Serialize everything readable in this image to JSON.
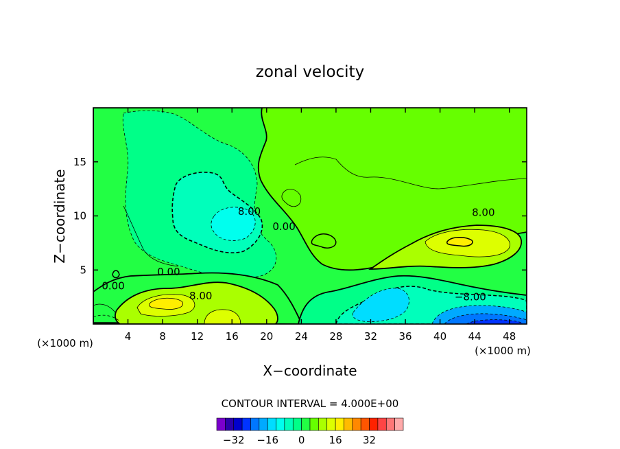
{
  "chart_data": {
    "type": "heatmap",
    "title": "zonal velocity",
    "xlabel": "X−coordinate",
    "ylabel": "Z−coordinate",
    "x_unit_label_left": "(×1000 m)",
    "x_unit_label_right": "(×1000 m)",
    "xlim": [
      0,
      50
    ],
    "ylim": [
      0,
      20
    ],
    "xticks": [
      4,
      8,
      12,
      16,
      20,
      24,
      28,
      32,
      36,
      40,
      44,
      48
    ],
    "yticks": [
      5,
      10,
      15
    ],
    "contour_interval_text": "CONTOUR INTERVAL = 4.000E+00",
    "contour_labels": [
      {
        "text": "0.00",
        "x": 2.3,
        "y": 3.2
      },
      {
        "text": "0.00",
        "x": 8.7,
        "y": 4.5
      },
      {
        "text": "8.00",
        "x": 12.4,
        "y": 2.3
      },
      {
        "text": "8.00",
        "x": 18.0,
        "y": 10.1
      },
      {
        "text": "0.00",
        "x": 22.0,
        "y": 8.7
      },
      {
        "text": "8.00",
        "x": 45.0,
        "y": 10.0
      },
      {
        "text": "−8.00",
        "x": 43.5,
        "y": 2.2
      }
    ],
    "colorbar": {
      "colors": [
        "#7a00cc",
        "#2a00aa",
        "#0000cc",
        "#0033ff",
        "#0077ff",
        "#00aaff",
        "#00ddff",
        "#00ffee",
        "#00ffbb",
        "#00ff88",
        "#22ff44",
        "#66ff00",
        "#aaff00",
        "#ddff00",
        "#ffee00",
        "#ffbb00",
        "#ff8800",
        "#ff5500",
        "#ff2200",
        "#ff4444",
        "#ff7777",
        "#ffaaaa"
      ],
      "tick_labels": [
        "−32",
        "−16",
        "0",
        "16",
        "32"
      ],
      "tick_values": [
        -32,
        -16,
        0,
        16,
        32
      ]
    },
    "fill_colors": {
      "background": "#66ff00",
      "level_0": "#22ff44",
      "level_neg4": "#00ff88",
      "level_neg8": "#00ffbb",
      "level_neg12": "#00ffee",
      "level_neg16": "#00ddff",
      "level_neg20": "#00aaff",
      "level_neg24": "#0077ff",
      "level_pos8": "#aaff00",
      "level_pos12": "#ddff00",
      "level_pos16": "#ffee00",
      "level_pos20": "#ffbb00"
    }
  }
}
